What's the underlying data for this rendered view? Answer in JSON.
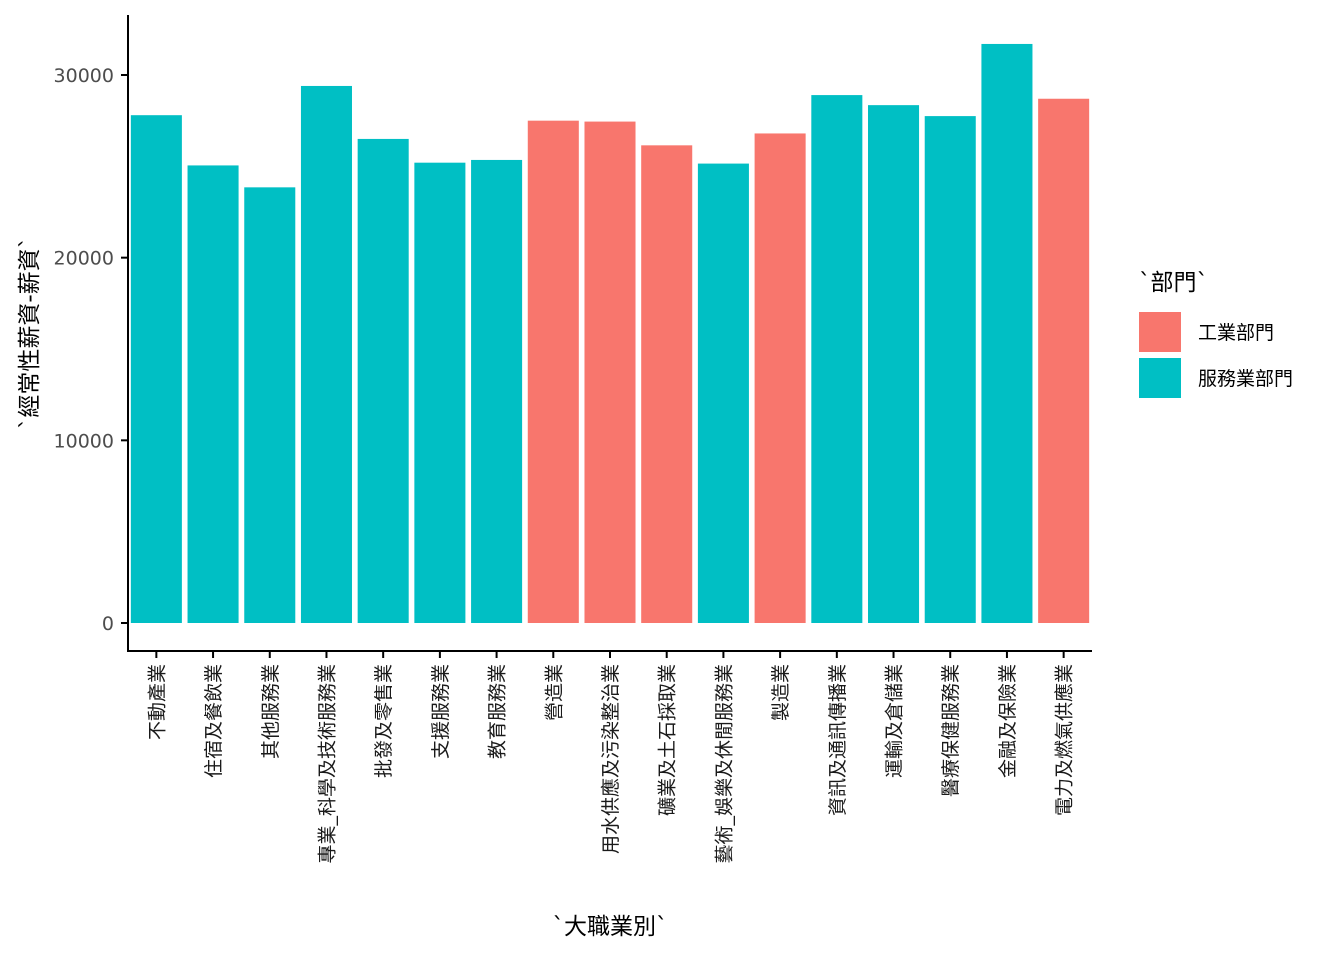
{
  "chart_data": {
    "type": "bar",
    "xlabel": "`大職業別`",
    "ylabel": "`經常性薪資-薪資`",
    "ylim": [
      -1500,
      33000
    ],
    "yticks": [
      0,
      10000,
      20000,
      30000
    ],
    "grid": false,
    "legend": {
      "title": "`部門`",
      "placement": "right",
      "entries": [
        {
          "name": "工業部門",
          "color": "#F8766D"
        },
        {
          "name": "服務業部門",
          "color": "#00BFC4"
        }
      ]
    },
    "categories": [
      "不動產業",
      "住宿及餐飲業",
      "其他服務業",
      "專業_科學及技術服務業",
      "批發及零售業",
      "支援服務業",
      "教育服務業",
      "營造業",
      "用水供應及污染整治業",
      "礦業及土石採取業",
      "藝術_娛樂及休閒服務業",
      "製造業",
      "資訊及通訊傳播業",
      "運輸及倉儲業",
      "醫療保健服務業",
      "金融及保險業",
      "電力及燃氣供應業"
    ],
    "series_by_category": [
      "服務業部門",
      "服務業部門",
      "服務業部門",
      "服務業部門",
      "服務業部門",
      "服務業部門",
      "服務業部門",
      "工業部門",
      "工業部門",
      "工業部門",
      "服務業部門",
      "工業部門",
      "服務業部門",
      "服務業部門",
      "服務業部門",
      "服務業部門",
      "工業部門"
    ],
    "values": [
      27800,
      25050,
      23850,
      29400,
      26500,
      25200,
      25350,
      27500,
      27450,
      26150,
      25150,
      26800,
      28900,
      28350,
      27750,
      31700,
      28700
    ]
  }
}
